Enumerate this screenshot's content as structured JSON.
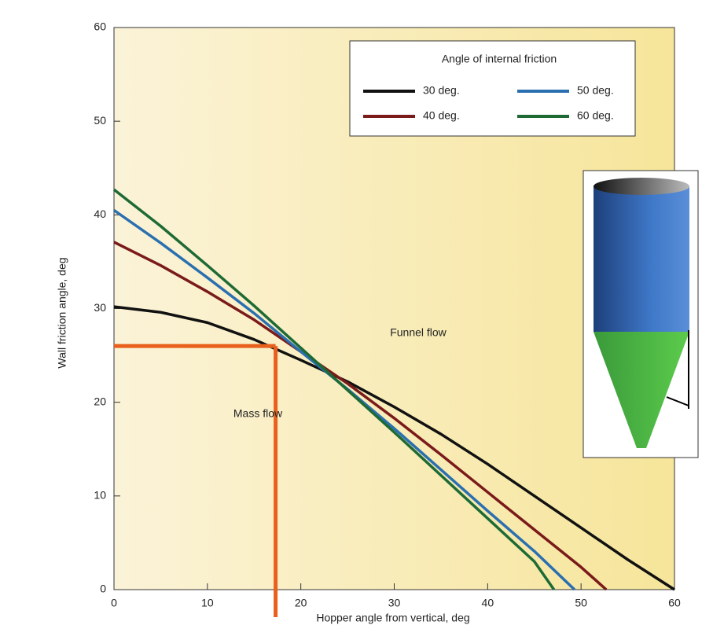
{
  "chart_data": {
    "type": "line",
    "x_label": "Hopper angle from vertical, deg",
    "y_label": "Wall friction angle, deg",
    "xlim": [
      0,
      60
    ],
    "ylim": [
      0,
      60
    ],
    "xticks": [
      0,
      10,
      20,
      30,
      40,
      50,
      60
    ],
    "yticks": [
      0,
      10,
      20,
      30,
      40,
      50,
      60
    ],
    "legend_title": "Angle of internal friction",
    "legend_position": "upper right",
    "annotations": [
      "Funnel flow",
      "Mass flow"
    ],
    "guide": {
      "x": 17.3,
      "y": 26,
      "color": "#e8601c"
    },
    "series": [
      {
        "name": "30 deg.",
        "color": "#111111",
        "x": [
          0,
          5,
          10,
          15,
          20,
          25,
          30,
          35,
          40,
          45,
          50,
          55,
          60
        ],
        "values": [
          30.2,
          29.6,
          28.5,
          26.7,
          24.5,
          22.2,
          19.5,
          16.6,
          13.4,
          10,
          6.6,
          3.2,
          0
        ]
      },
      {
        "name": "40 deg.",
        "color": "#7a1a1a",
        "x": [
          0,
          5,
          10,
          15,
          20,
          25,
          30,
          35,
          40,
          45,
          50,
          52.7
        ],
        "values": [
          37.1,
          34.6,
          31.8,
          28.8,
          25.4,
          22,
          18.3,
          14.4,
          10.4,
          6.4,
          2.4,
          0
        ]
      },
      {
        "name": "50 deg.",
        "color": "#2a6fb0",
        "x": [
          0,
          5,
          10,
          15,
          20,
          25,
          30,
          35,
          40,
          45,
          49.3
        ],
        "values": [
          40.5,
          37,
          33.3,
          29.5,
          25.4,
          21.4,
          17.2,
          12.8,
          8.4,
          4.1,
          0
        ]
      },
      {
        "name": "60 deg.",
        "color": "#1e6a35",
        "x": [
          0,
          5,
          10,
          15,
          20,
          25,
          30,
          35,
          40,
          45,
          47.1
        ],
        "values": [
          42.7,
          38.8,
          34.6,
          30.3,
          25.8,
          21.3,
          16.8,
          12.2,
          7.6,
          3,
          0
        ]
      }
    ]
  }
}
